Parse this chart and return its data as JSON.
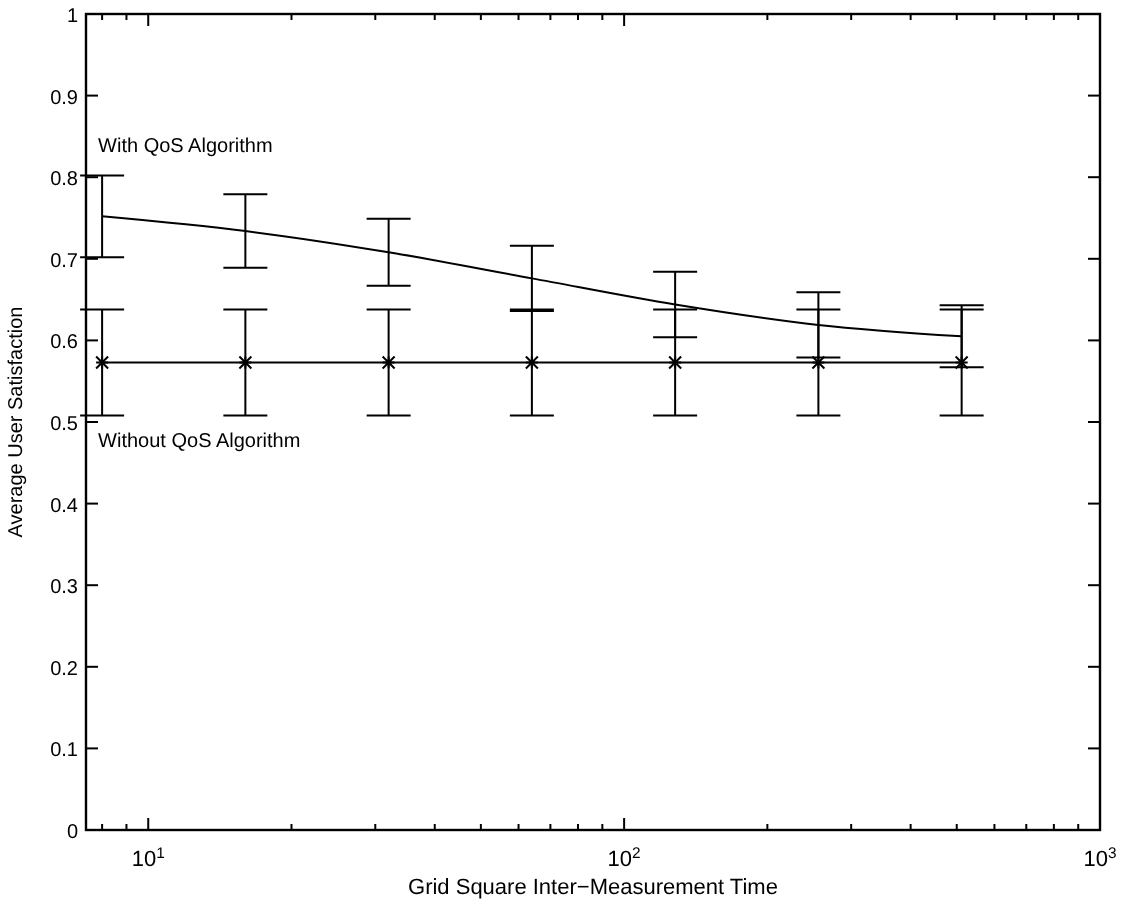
{
  "chart_data": {
    "type": "line",
    "xlabel": "Grid Square Inter−Measurement Time",
    "ylabel": "Average User Satisfaction",
    "log": "x",
    "grid": false,
    "legend": "top left",
    "x": [
      8,
      16,
      32,
      64,
      128,
      256,
      512
    ],
    "series": [
      {
        "name": "With QoS Algorithm",
        "color": "#000000",
        "marker": "none",
        "values": [
          0.752,
          0.734,
          0.708,
          0.676,
          0.644,
          0.619,
          0.605
        ],
        "errors": [
          0.05,
          0.045,
          0.041,
          0.04,
          0.04,
          0.04,
          0.038
        ]
      },
      {
        "name": "Without QoS Algorithm",
        "color": "#000000",
        "marker": "cross",
        "values": [
          0.573,
          0.573,
          0.573,
          0.573,
          0.573,
          0.573,
          0.573
        ],
        "errors": [
          0.065,
          0.065,
          0.065,
          0.065,
          0.065,
          0.065,
          0.065
        ]
      }
    ],
    "xlim": [
      7.4,
      1000
    ],
    "xticks": [
      {
        "value": 8,
        "label": null
      },
      {
        "value": 9,
        "label": null
      },
      {
        "value": 10,
        "label": "10$^{1}$"
      },
      {
        "value": 20,
        "label": null
      },
      {
        "value": 30,
        "label": null
      },
      {
        "value": 40,
        "label": null
      },
      {
        "value": 50,
        "label": null
      },
      {
        "value": 60,
        "label": null
      },
      {
        "value": 70,
        "label": null
      },
      {
        "value": 80,
        "label": null
      },
      {
        "value": 90,
        "label": null
      },
      {
        "value": 100,
        "label": "10$^{2}$"
      },
      {
        "value": 200,
        "label": null
      },
      {
        "value": 300,
        "label": null
      },
      {
        "value": 400,
        "label": null
      },
      {
        "value": 500,
        "label": null
      },
      {
        "value": 600,
        "label": null
      },
      {
        "value": 700,
        "label": null
      },
      {
        "value": 800,
        "label": null
      },
      {
        "value": 900,
        "label": null
      },
      {
        "value": 1000,
        "label": "10$^{3}$"
      }
    ],
    "ylim": [
      0,
      1
    ],
    "yticks": [
      0,
      0.1,
      0.2,
      0.3,
      0.4,
      0.5,
      0.6,
      0.7,
      0.8,
      0.9,
      1
    ]
  }
}
